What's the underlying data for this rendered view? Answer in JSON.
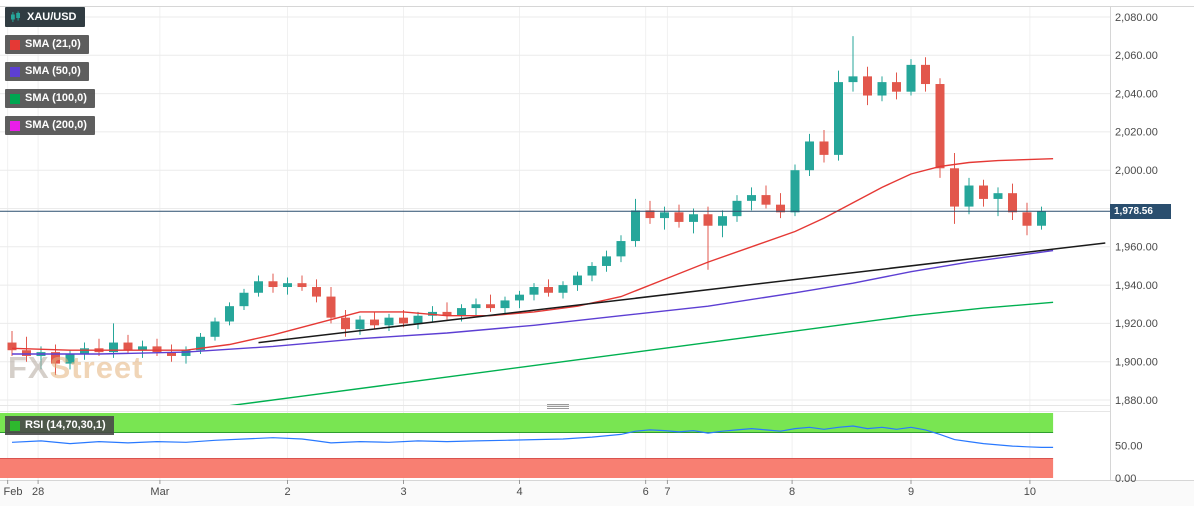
{
  "legend": {
    "symbol": {
      "label": "XAU/USD"
    },
    "indicators": [
      {
        "label": "SMA (21,0)",
        "color": "#e53935"
      },
      {
        "label": "SMA (50,0)",
        "color": "#5d3fd3"
      },
      {
        "label": "SMA (100,0)",
        "color": "#00a651"
      },
      {
        "label": "SMA (200,0)",
        "color": "#e91ee9"
      }
    ]
  },
  "watermark": {
    "fx": "FX",
    "street": "Street"
  },
  "chart_data": {
    "type": "candlestick",
    "title": "XAU/USD",
    "last_price": 1978.56,
    "last_price_label": "1,978.56",
    "y_axis": {
      "min": 1880,
      "max": 2080,
      "step": 20,
      "labels": [
        "2,080.00",
        "2,060.00",
        "2,040.00",
        "2,020.00",
        "2,000.00",
        "1,980.00",
        "1,960.00",
        "1,940.00",
        "1,920.00",
        "1,900.00",
        "1,880.00"
      ]
    },
    "x_ticks": [
      {
        "label": "Feb",
        "i": -0.3
      },
      {
        "label": "28",
        "i": 1.8
      },
      {
        "label": "Mar",
        "i": 10.2
      },
      {
        "label": "2",
        "i": 19
      },
      {
        "label": "3",
        "i": 27
      },
      {
        "label": "4",
        "i": 35
      },
      {
        "label": "6",
        "i": 43.7
      },
      {
        "label": "7",
        "i": 45.2
      },
      {
        "label": "8",
        "i": 53.8
      },
      {
        "label": "9",
        "i": 62
      },
      {
        "label": "10",
        "i": 70.2
      }
    ],
    "candles": [
      [
        1910,
        1916,
        1903,
        1906
      ],
      [
        1906,
        1913,
        1900,
        1903
      ],
      [
        1903,
        1908,
        1896,
        1905
      ],
      [
        1905,
        1909,
        1893,
        1899
      ],
      [
        1899,
        1906,
        1896,
        1904
      ],
      [
        1904,
        1910,
        1901,
        1907
      ],
      [
        1907,
        1912,
        1903,
        1905
      ],
      [
        1905,
        1920,
        1902,
        1910
      ],
      [
        1910,
        1914,
        1904,
        1906
      ],
      [
        1906,
        1911,
        1902,
        1908
      ],
      [
        1908,
        1912,
        1903,
        1905
      ],
      [
        1905,
        1909,
        1900,
        1903
      ],
      [
        1903,
        1908,
        1899,
        1906
      ],
      [
        1906,
        1915,
        1904,
        1913
      ],
      [
        1913,
        1923,
        1911,
        1921
      ],
      [
        1921,
        1931,
        1919,
        1929
      ],
      [
        1929,
        1938,
        1927,
        1936
      ],
      [
        1936,
        1945,
        1934,
        1942
      ],
      [
        1942,
        1946,
        1936,
        1939
      ],
      [
        1939,
        1944,
        1935,
        1941
      ],
      [
        1941,
        1945,
        1937,
        1939
      ],
      [
        1939,
        1943,
        1931,
        1934
      ],
      [
        1934,
        1939,
        1920,
        1923
      ],
      [
        1923,
        1927,
        1913,
        1917
      ],
      [
        1917,
        1924,
        1914,
        1922
      ],
      [
        1922,
        1926,
        1917,
        1919
      ],
      [
        1919,
        1925,
        1916,
        1923
      ],
      [
        1923,
        1927,
        1918,
        1920
      ],
      [
        1920,
        1926,
        1917,
        1924
      ],
      [
        1924,
        1929,
        1921,
        1926
      ],
      [
        1926,
        1931,
        1922,
        1924
      ],
      [
        1924,
        1930,
        1921,
        1928
      ],
      [
        1928,
        1933,
        1924,
        1930
      ],
      [
        1930,
        1935,
        1926,
        1928
      ],
      [
        1928,
        1934,
        1925,
        1932
      ],
      [
        1932,
        1937,
        1928,
        1935
      ],
      [
        1935,
        1941,
        1932,
        1939
      ],
      [
        1939,
        1943,
        1934,
        1936
      ],
      [
        1936,
        1942,
        1933,
        1940
      ],
      [
        1940,
        1947,
        1937,
        1945
      ],
      [
        1945,
        1952,
        1942,
        1950
      ],
      [
        1950,
        1958,
        1947,
        1955
      ],
      [
        1955,
        1966,
        1952,
        1963
      ],
      [
        1963,
        1985,
        1960,
        1979
      ],
      [
        1979,
        1984,
        1972,
        1975
      ],
      [
        1975,
        1981,
        1969,
        1978
      ],
      [
        1978,
        1982,
        1970,
        1973
      ],
      [
        1973,
        1980,
        1967,
        1977
      ],
      [
        1977,
        1981,
        1948,
        1971
      ],
      [
        1971,
        1979,
        1965,
        1976
      ],
      [
        1976,
        1987,
        1973,
        1984
      ],
      [
        1984,
        1991,
        1979,
        1987
      ],
      [
        1987,
        1992,
        1980,
        1982
      ],
      [
        1982,
        1988,
        1975,
        1978
      ],
      [
        1978,
        2003,
        1976,
        2000
      ],
      [
        2000,
        2019,
        1997,
        2015
      ],
      [
        2015,
        2021,
        2004,
        2008
      ],
      [
        2008,
        2052,
        2005,
        2046
      ],
      [
        2046,
        2070,
        2041,
        2049
      ],
      [
        2049,
        2054,
        2034,
        2039
      ],
      [
        2039,
        2049,
        2036,
        2046
      ],
      [
        2046,
        2051,
        2037,
        2041
      ],
      [
        2041,
        2058,
        2039,
        2055
      ],
      [
        2055,
        2059,
        2041,
        2045
      ],
      [
        2045,
        2048,
        1996,
        2001
      ],
      [
        2001,
        2009,
        1972,
        1981
      ],
      [
        1981,
        1996,
        1977,
        1992
      ],
      [
        1992,
        1995,
        1981,
        1985
      ],
      [
        1985,
        1991,
        1976,
        1988
      ],
      [
        1988,
        1993,
        1974,
        1978
      ],
      [
        1978,
        1983,
        1966,
        1971
      ],
      [
        1971,
        1981,
        1969,
        1978.56
      ]
    ],
    "overlays": [
      {
        "name": "SMA (21,0)",
        "color": "#e53935",
        "width": 1.4,
        "points": [
          [
            0,
            1907
          ],
          [
            4,
            1906
          ],
          [
            8,
            1906
          ],
          [
            12,
            1906
          ],
          [
            15,
            1909
          ],
          [
            18,
            1914
          ],
          [
            21,
            1920
          ],
          [
            24,
            1926
          ],
          [
            27,
            1926
          ],
          [
            30,
            1924
          ],
          [
            33,
            1924
          ],
          [
            36,
            1926
          ],
          [
            39,
            1929
          ],
          [
            42,
            1934
          ],
          [
            45,
            1943
          ],
          [
            48,
            1952
          ],
          [
            51,
            1960
          ],
          [
            54,
            1968
          ],
          [
            56,
            1975
          ],
          [
            58,
            1983
          ],
          [
            60,
            1991
          ],
          [
            62,
            1998
          ],
          [
            64,
            2002
          ],
          [
            66,
            2004
          ],
          [
            68,
            2005
          ],
          [
            71.8,
            2006
          ]
        ]
      },
      {
        "name": "SMA (50,0)",
        "color": "#5d3fd3",
        "width": 1.4,
        "points": [
          [
            0,
            1904
          ],
          [
            6,
            1904
          ],
          [
            12,
            1905
          ],
          [
            18,
            1908
          ],
          [
            24,
            1912
          ],
          [
            30,
            1915
          ],
          [
            36,
            1919
          ],
          [
            42,
            1924
          ],
          [
            48,
            1929
          ],
          [
            54,
            1936
          ],
          [
            58,
            1941
          ],
          [
            62,
            1947
          ],
          [
            66,
            1952
          ],
          [
            71.8,
            1958
          ]
        ]
      },
      {
        "name": "SMA (100,0)",
        "color": "#00b050",
        "width": 1.4,
        "points": [
          [
            15,
            1877
          ],
          [
            20,
            1882
          ],
          [
            26,
            1888
          ],
          [
            32,
            1894
          ],
          [
            38,
            1900
          ],
          [
            44,
            1906
          ],
          [
            50,
            1912
          ],
          [
            56,
            1918
          ],
          [
            62,
            1924
          ],
          [
            67,
            1928
          ],
          [
            71.8,
            1931
          ]
        ]
      },
      {
        "name": "trendline",
        "color": "#1a1a1a",
        "width": 1.5,
        "points": [
          [
            17,
            1910
          ],
          [
            75.4,
            1962
          ]
        ]
      }
    ],
    "rsi": {
      "label": "RSI (14,70,30,1)",
      "swatch_color": "#2eb82e",
      "range": [
        0,
        100
      ],
      "upper": 70,
      "lower": 30,
      "line_color": "#2979ff",
      "band_upper_color": "#79e552",
      "band_lower_color": "#f87f72",
      "ticks": [
        {
          "value": 50,
          "label": "50.00"
        },
        {
          "value": 0,
          "label": "0.00"
        }
      ],
      "points": [
        [
          0,
          55
        ],
        [
          2,
          57
        ],
        [
          4,
          53
        ],
        [
          6,
          56
        ],
        [
          8,
          54
        ],
        [
          10,
          56
        ],
        [
          12,
          55
        ],
        [
          14,
          58
        ],
        [
          16,
          60
        ],
        [
          18,
          62
        ],
        [
          20,
          60
        ],
        [
          21,
          57
        ],
        [
          22,
          54
        ],
        [
          24,
          56
        ],
        [
          26,
          55
        ],
        [
          28,
          57
        ],
        [
          30,
          56
        ],
        [
          32,
          57
        ],
        [
          34,
          58
        ],
        [
          36,
          59
        ],
        [
          38,
          60
        ],
        [
          40,
          63
        ],
        [
          42,
          67
        ],
        [
          43,
          72
        ],
        [
          44,
          74
        ],
        [
          45,
          73
        ],
        [
          46,
          71
        ],
        [
          47,
          73
        ],
        [
          48,
          69
        ],
        [
          49,
          72
        ],
        [
          50,
          74
        ],
        [
          51,
          76
        ],
        [
          52,
          74
        ],
        [
          53,
          72
        ],
        [
          54,
          76
        ],
        [
          55,
          78
        ],
        [
          56,
          75
        ],
        [
          57,
          78
        ],
        [
          58,
          80
        ],
        [
          59,
          76
        ],
        [
          60,
          78
        ],
        [
          61,
          75
        ],
        [
          62,
          78
        ],
        [
          63,
          74
        ],
        [
          64,
          67
        ],
        [
          65,
          59
        ],
        [
          66,
          56
        ],
        [
          67,
          53
        ],
        [
          68,
          51
        ],
        [
          69,
          49
        ],
        [
          70,
          48
        ],
        [
          71,
          47
        ],
        [
          71.8,
          47
        ]
      ]
    },
    "colors": {
      "up": "#26a69a",
      "down": "#e2574c",
      "grid": "#ebebeb",
      "vgrid": "#f1f1f1",
      "price_line": "#2a4e6e",
      "axis_text": "#4a4a4a"
    }
  }
}
